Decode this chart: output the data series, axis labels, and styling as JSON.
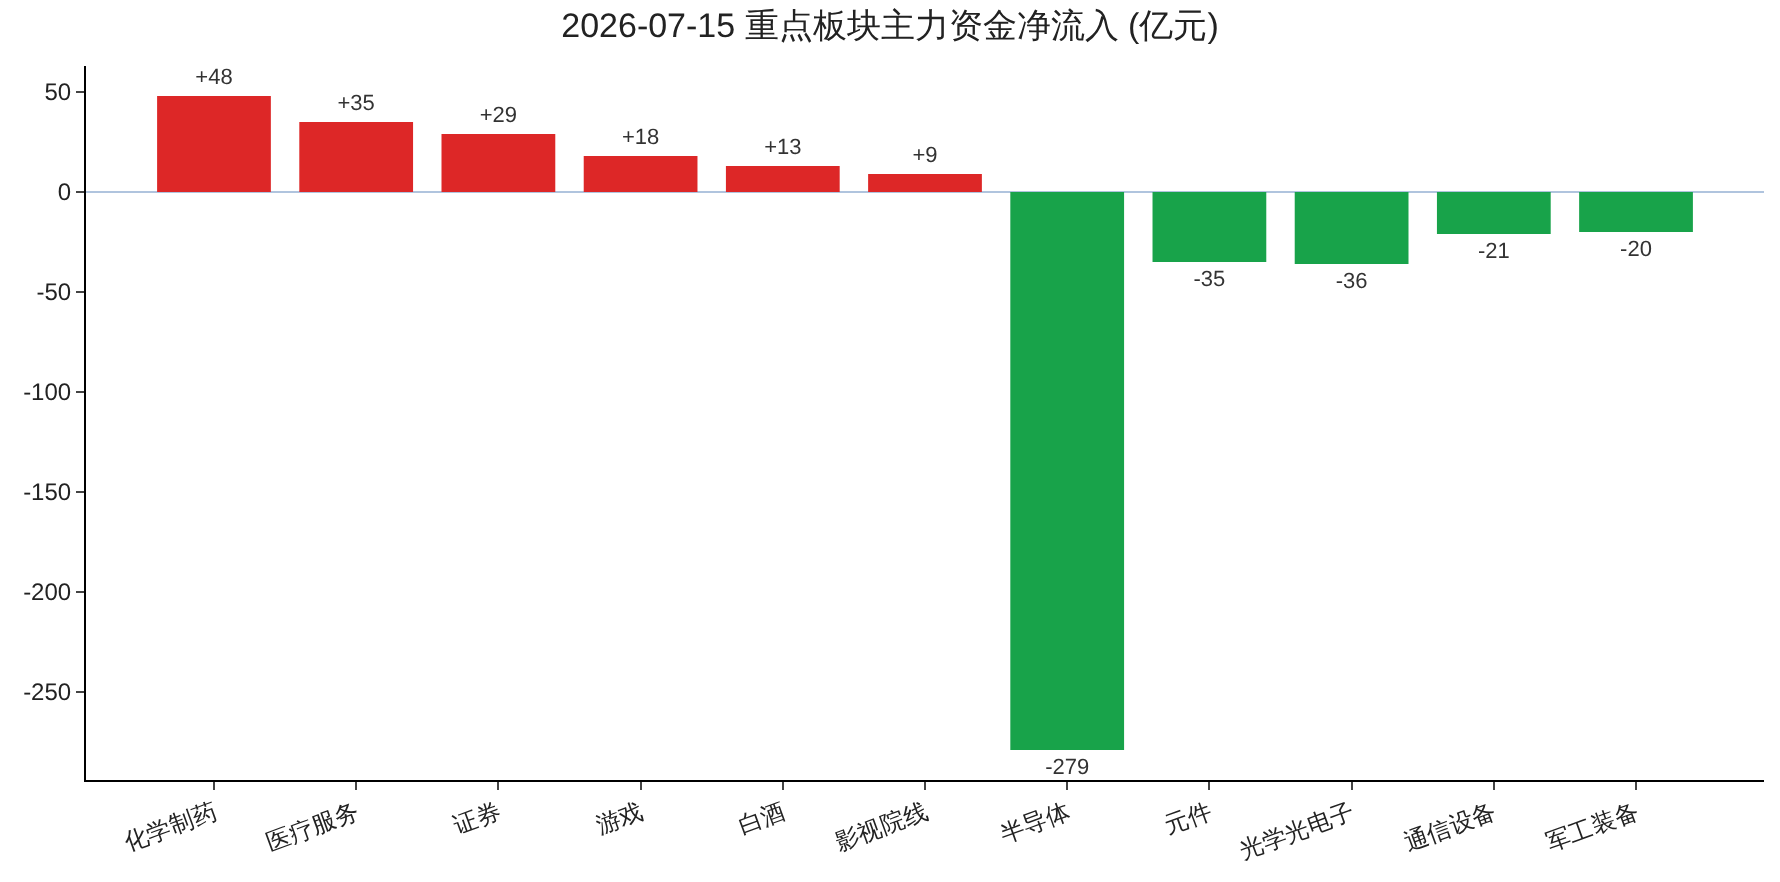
{
  "chart_data": {
    "type": "bar",
    "title": "2026-07-15 重点板块主力资金净流入 (亿元)",
    "categories": [
      "化学制药",
      "医疗服务",
      "证券",
      "游戏",
      "白酒",
      "影视院线",
      "半导体",
      "元件",
      "光学光电子",
      "通信设备",
      "军工装备"
    ],
    "values": [
      48,
      35,
      29,
      18,
      13,
      9,
      -279,
      -35,
      -36,
      -21,
      -20
    ],
    "colors": [
      "#dd2727",
      "#dd2727",
      "#dd2727",
      "#dd2727",
      "#dd2727",
      "#dd2727",
      "#18a34a",
      "#18a34a",
      "#18a34a",
      "#18a34a",
      "#18a34a"
    ],
    "value_labels": [
      "+48",
      "+35",
      "+29",
      "+18",
      "+13",
      "+9",
      "-279",
      "-35",
      "-36",
      "-21",
      "-20"
    ],
    "ylim": [
      -294,
      63
    ],
    "yticks": [
      -250,
      -200,
      -150,
      -100,
      -50,
      0,
      50
    ],
    "ref_lines": [
      {
        "axis": "y",
        "value": 0,
        "color": "#b0c4de"
      }
    ],
    "grid": false,
    "legend": false
  }
}
